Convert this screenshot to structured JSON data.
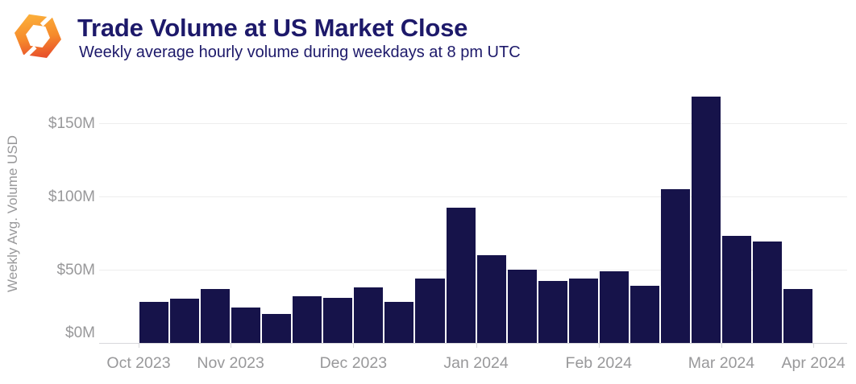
{
  "header": {
    "title": "Trade Volume at US Market Close",
    "subtitle": "Weekly average hourly volume during weekdays at 8 pm UTC",
    "logo_icon": "orange-hexagon-brand-mark"
  },
  "chart_data": {
    "type": "bar",
    "title": "Trade Volume at US Market Close",
    "subtitle": "Weekly average hourly volume during weekdays at 8 pm UTC",
    "ylabel": "Weekly Avg. Volume USD",
    "xlabel": "",
    "unit": "USD millions",
    "ylim": [
      0,
      175
    ],
    "grid": "horizontal",
    "legend": "none",
    "yticks": [
      {
        "label": "$0M",
        "value": 0
      },
      {
        "label": "$50M",
        "value": 50
      },
      {
        "label": "$100M",
        "value": 100
      },
      {
        "label": "$150M",
        "value": 150
      }
    ],
    "x_month_labels": [
      "Oct 2023",
      "Nov 2023",
      "Dec 2023",
      "Jan 2024",
      "Feb 2024",
      "Mar 2024",
      "Apr 2024"
    ],
    "month_boundary_bar_indices": [
      0,
      3,
      7,
      11,
      15,
      19,
      22
    ],
    "values_millions_usd": [
      28,
      30,
      37,
      24,
      20,
      32,
      31,
      38,
      28,
      44,
      92,
      60,
      50,
      42,
      44,
      49,
      39,
      105,
      168,
      73,
      69,
      37
    ]
  },
  "colors": {
    "bar": "#16134a",
    "heading_text": "#1d196a",
    "axis_text": "#98989a",
    "gridline": "#ededed",
    "axis_line": "#d8d8dc",
    "logo_gradient_top": "#FBB03B",
    "logo_gradient_mid": "#F68B2C",
    "logo_gradient_bottom": "#E8512B",
    "background": "#ffffff"
  }
}
